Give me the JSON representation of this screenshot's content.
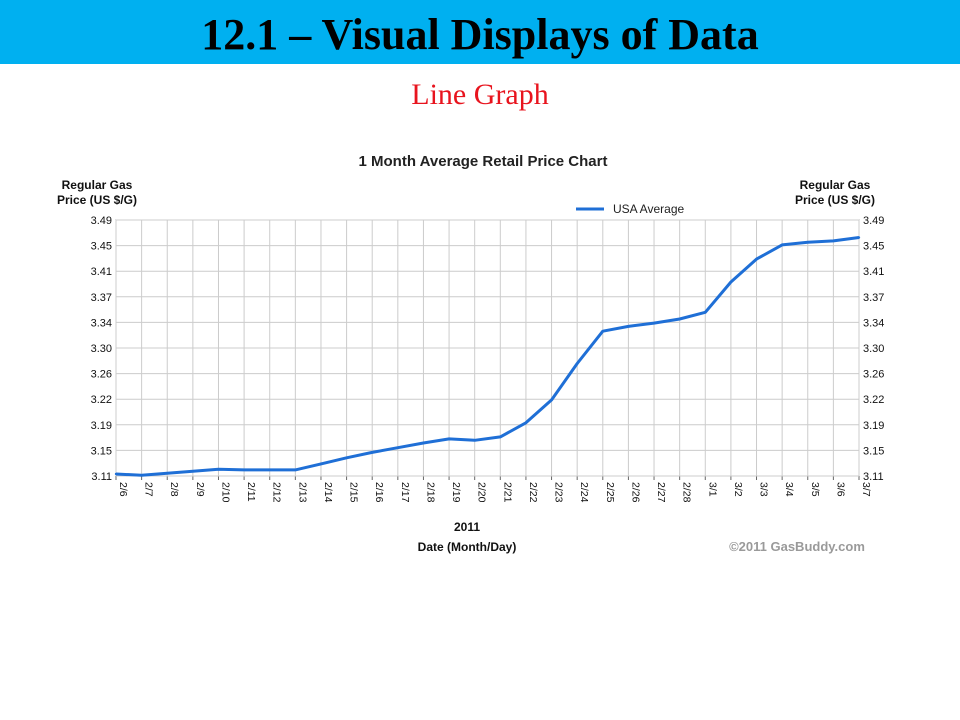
{
  "slide": {
    "title": "12.1 – Visual Displays of Data",
    "subtitle": "Line Graph"
  },
  "colors": {
    "title_bar": "#00b0f0",
    "subtitle": "#e8141e",
    "series_line": "#1f6fd6"
  },
  "chart_data": {
    "type": "line",
    "title": "1 Month Average Retail Price Chart",
    "ylabel_left": [
      "Regular Gas",
      "Price (US $/G)"
    ],
    "ylabel_right": [
      "Regular Gas",
      "Price (US $/G)"
    ],
    "xlabel_year": "2011",
    "xlabel": "Date (Month/Day)",
    "credit": "©2011 GasBuddy.com",
    "ylim": [
      3.11,
      3.49
    ],
    "yticks": [
      "3.49",
      "3.45",
      "3.41",
      "3.37",
      "3.34",
      "3.30",
      "3.26",
      "3.22",
      "3.19",
      "3.15",
      "3.11"
    ],
    "grid": true,
    "legend_position": "top-right",
    "categories": [
      "2/6",
      "2/7",
      "2/8",
      "2/9",
      "2/10",
      "2/11",
      "2/12",
      "2/13",
      "2/14",
      "2/15",
      "2/16",
      "2/17",
      "2/18",
      "2/19",
      "2/20",
      "2/21",
      "2/22",
      "2/23",
      "2/24",
      "2/25",
      "2/26",
      "2/27",
      "2/28",
      "3/1",
      "3/2",
      "3/3",
      "3/4",
      "3/5",
      "3/6",
      "3/7"
    ],
    "series": [
      {
        "name": "USA Average",
        "values": [
          3.113,
          3.111,
          3.114,
          3.117,
          3.12,
          3.119,
          3.119,
          3.119,
          3.128,
          3.137,
          3.145,
          3.152,
          3.159,
          3.165,
          3.163,
          3.168,
          3.189,
          3.223,
          3.277,
          3.325,
          3.332,
          3.337,
          3.343,
          3.353,
          3.398,
          3.432,
          3.453,
          3.457,
          3.459,
          3.464
        ]
      }
    ]
  }
}
